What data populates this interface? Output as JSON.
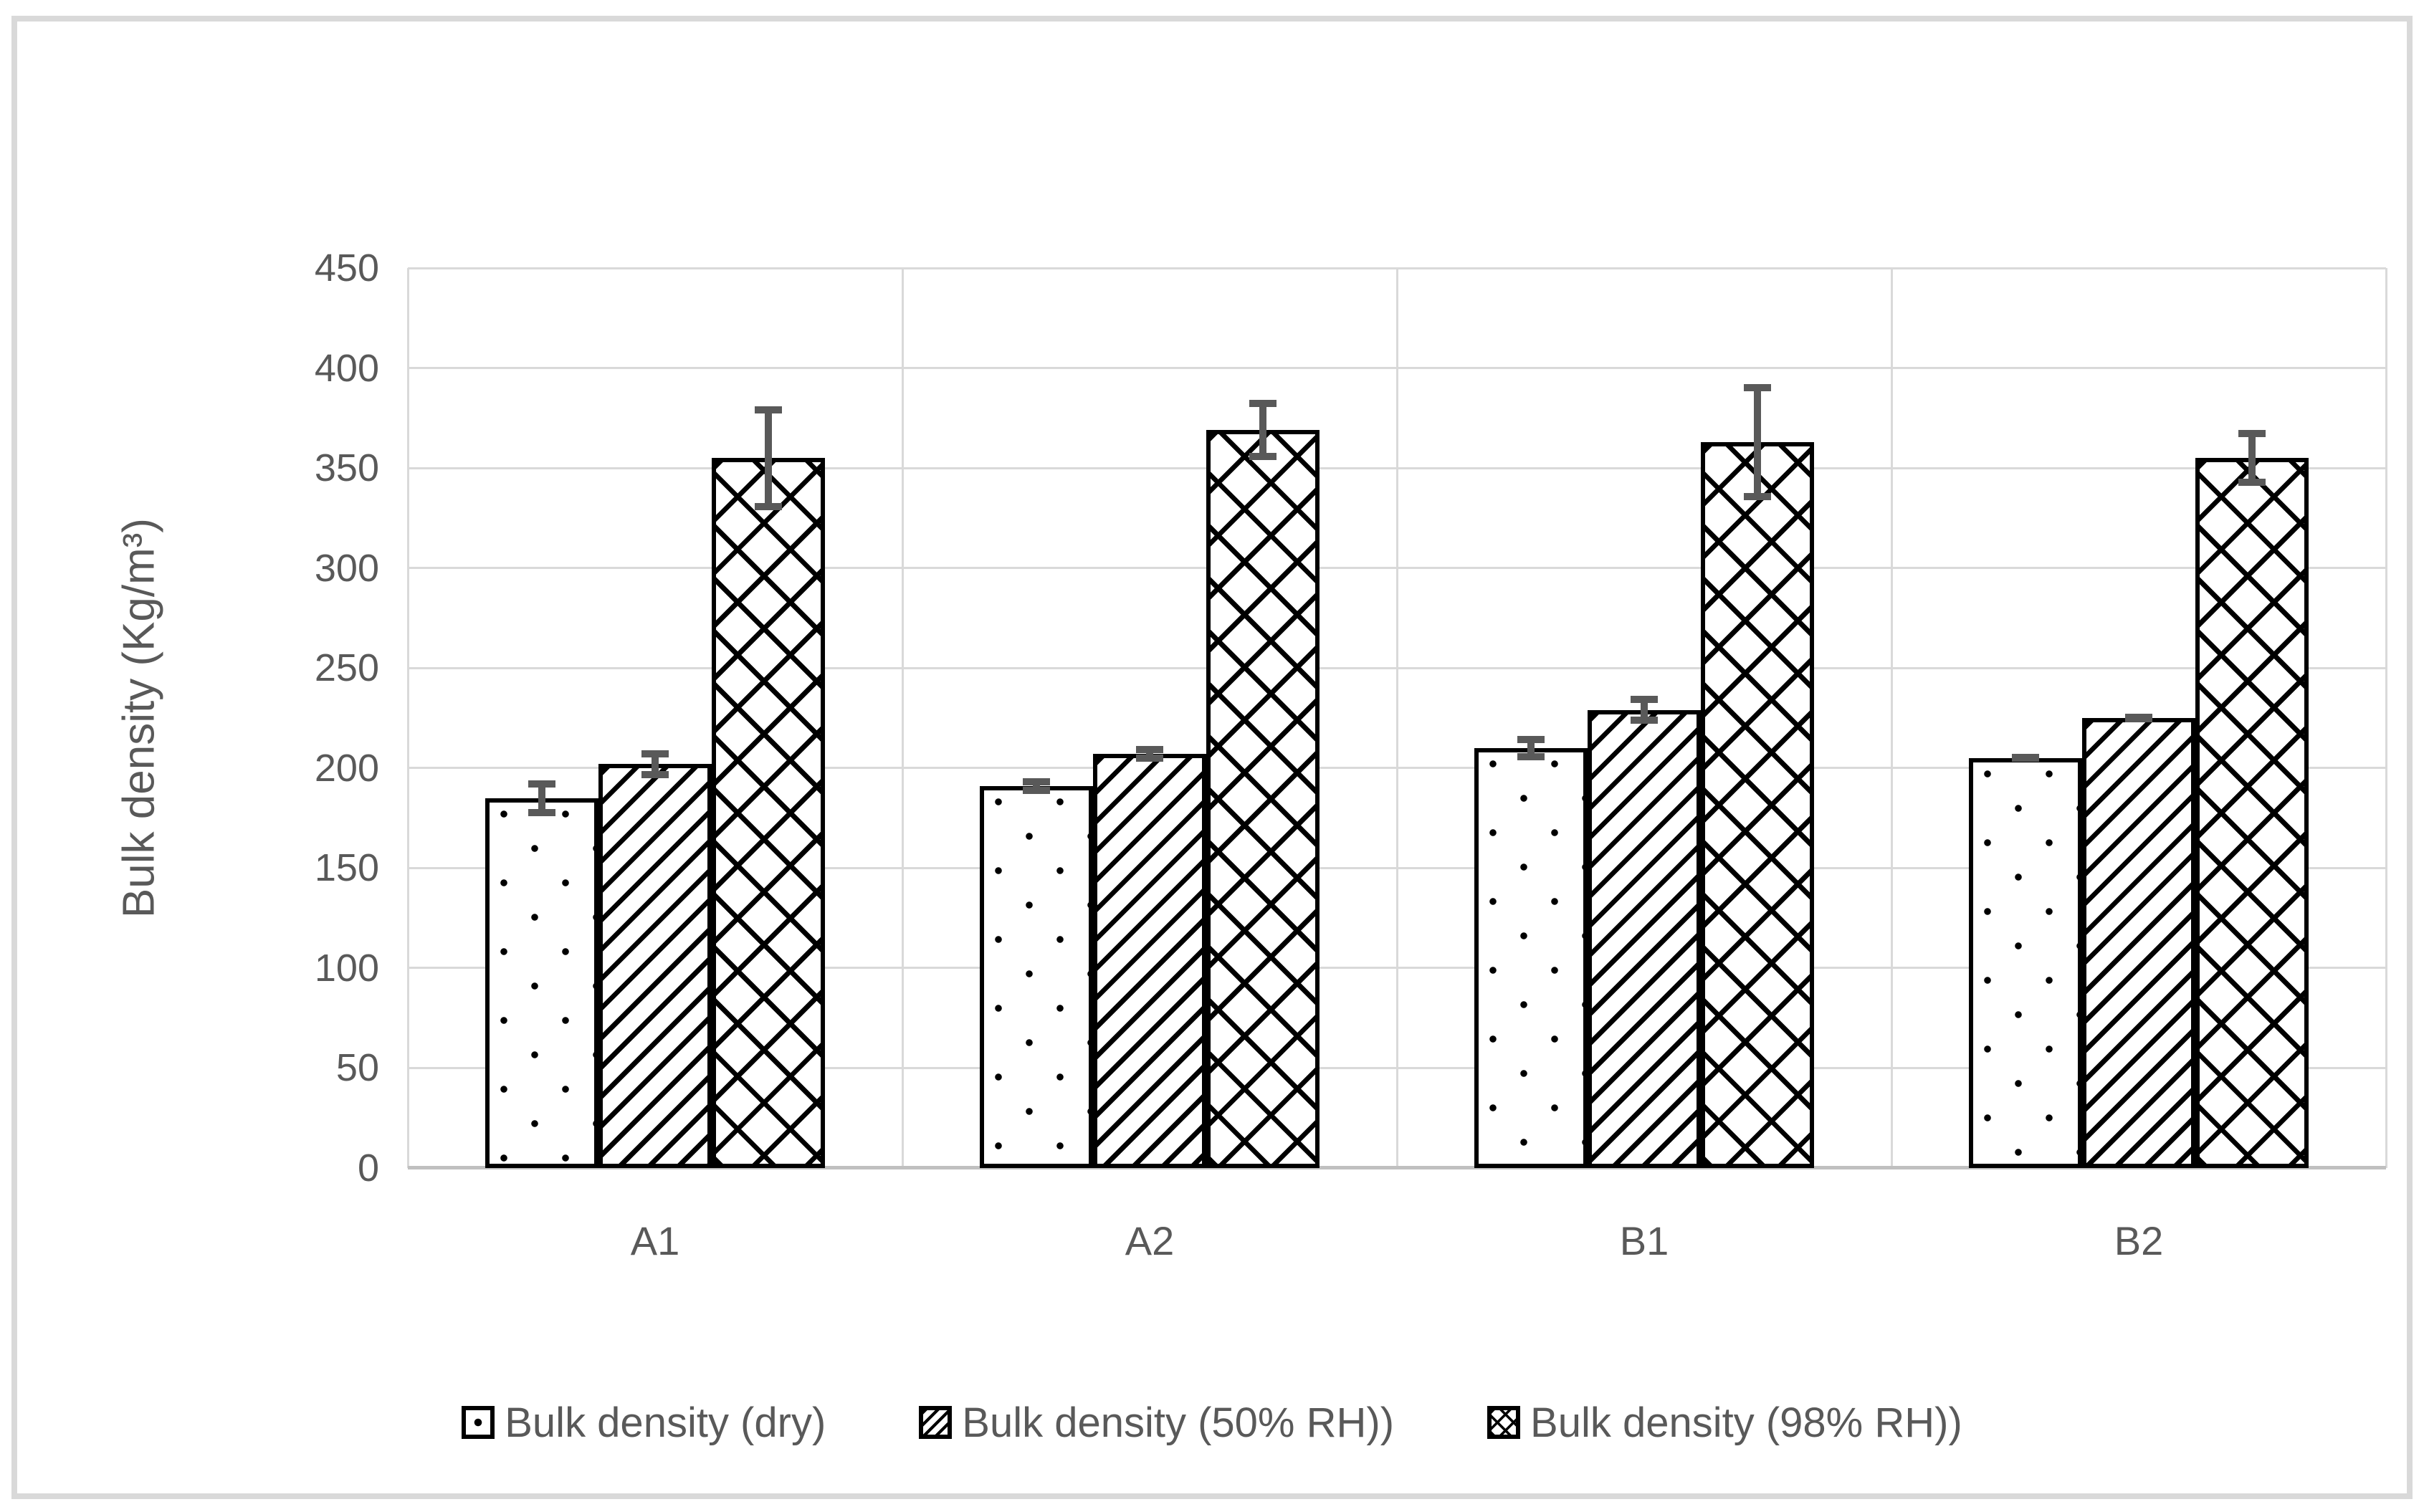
{
  "chart_data": {
    "type": "bar",
    "title": "",
    "ylabel": "Bulk density (Kg/m³)",
    "xlabel": "",
    "categories": [
      "A1",
      "A2",
      "B1",
      "B2"
    ],
    "series": [
      {
        "name": "Bulk density (dry)",
        "pattern": "dots",
        "values": [
          185,
          191,
          210,
          205
        ],
        "errors": [
          9,
          4,
          6,
          2
        ]
      },
      {
        "name": "Bulk density (50% RH))",
        "pattern": "diagonal",
        "values": [
          202,
          207,
          229,
          225
        ],
        "errors": [
          7,
          4,
          7,
          2
        ]
      },
      {
        "name": "Bulk density (98% RH))",
        "pattern": "crosshatch",
        "values": [
          355,
          369,
          363,
          355
        ],
        "errors": [
          26,
          15,
          29,
          14
        ]
      }
    ],
    "ylim": [
      0,
      450
    ],
    "ytick_step": 50,
    "grid": true,
    "legend_position": "bottom",
    "colors": {
      "axis_text": "#595959",
      "gridline": "#d9d9d9",
      "axis_line": "#c0c0c0",
      "bar_fill": "#ffffff",
      "bar_border": "#000000",
      "error_bar": "#595959",
      "chart_border": "#d9d9d9",
      "background": "#ffffff"
    }
  }
}
